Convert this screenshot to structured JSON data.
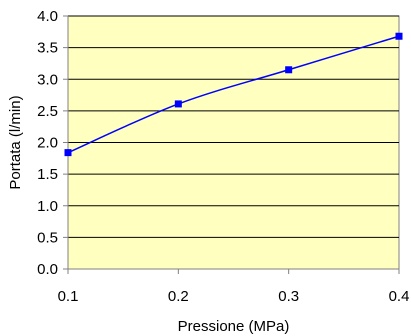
{
  "chart_data": {
    "type": "line",
    "title": "",
    "xlabel": "Pressione (MPa)",
    "ylabel": "Portata (l/min)",
    "xlim": [
      0.1,
      0.4
    ],
    "ylim": [
      0.0,
      4.0
    ],
    "x_ticks": [
      "0.1",
      "0.2",
      "0.3",
      "0.4"
    ],
    "y_ticks": [
      "0.0",
      "0.5",
      "1.0",
      "1.5",
      "2.0",
      "2.5",
      "3.0",
      "3.5",
      "4.0"
    ],
    "grid": "horizontal",
    "legend": "none",
    "series": [
      {
        "x": [
          0.1,
          0.2,
          0.3,
          0.4
        ],
        "y": [
          1.84,
          2.61,
          3.15,
          3.68
        ],
        "color": "#0000ff",
        "marker": "square",
        "smooth": true
      }
    ],
    "colors": {
      "plot_background": "#ffffc0",
      "gridline": "#000000",
      "axis": "#808080"
    }
  }
}
